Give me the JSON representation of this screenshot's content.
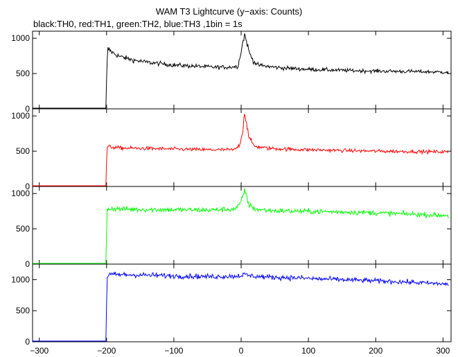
{
  "chart_data": {
    "type": "line",
    "title": "WAM T3 Lightcurve (y−axis: Counts)",
    "subtitle": "black:TH0, red:TH1, green:TH2, blue:TH3 ,1bin = 1s",
    "xlim": [
      -310,
      312
    ],
    "x_ticks": [
      -300,
      -200,
      -100,
      0,
      100,
      200,
      300
    ],
    "x_tick_labels": [
      "−300",
      "−200",
      "−100",
      "0",
      "100",
      "200",
      "300"
    ],
    "grid": false,
    "panels": [
      {
        "name": "TH0",
        "color": "#000000",
        "ylim": [
          0,
          1100
        ],
        "y_ticks": [
          0,
          500,
          1000
        ],
        "y_tick_labels": [
          "0",
          "500",
          "1000"
        ],
        "points": [
          [
            -310,
            0
          ],
          [
            -201,
            0
          ],
          [
            -200,
            400
          ],
          [
            -199,
            700
          ],
          [
            -198,
            850
          ],
          [
            -190,
            790
          ],
          [
            -180,
            740
          ],
          [
            -160,
            690
          ],
          [
            -140,
            660
          ],
          [
            -120,
            640
          ],
          [
            -100,
            620
          ],
          [
            -80,
            610
          ],
          [
            -60,
            600
          ],
          [
            -40,
            590
          ],
          [
            -20,
            590
          ],
          [
            -5,
            600
          ],
          [
            -2,
            720
          ],
          [
            2,
            920
          ],
          [
            5,
            1050
          ],
          [
            8,
            960
          ],
          [
            12,
            800
          ],
          [
            18,
            680
          ],
          [
            25,
            620
          ],
          [
            40,
            600
          ],
          [
            60,
            580
          ],
          [
            80,
            570
          ],
          [
            100,
            560
          ],
          [
            150,
            545
          ],
          [
            200,
            535
          ],
          [
            250,
            530
          ],
          [
            300,
            520
          ],
          [
            305,
            525
          ],
          [
            308,
            500
          ]
        ]
      },
      {
        "name": "TH1",
        "color": "#ff0000",
        "ylim": [
          0,
          1100
        ],
        "y_ticks": [
          0,
          500,
          1000
        ],
        "y_tick_labels": [
          "0",
          "500",
          "1000"
        ],
        "points": [
          [
            -310,
            0
          ],
          [
            -201,
            0
          ],
          [
            -200,
            350
          ],
          [
            -199,
            560
          ],
          [
            -195,
            560
          ],
          [
            -180,
            545
          ],
          [
            -150,
            540
          ],
          [
            -100,
            530
          ],
          [
            -50,
            520
          ],
          [
            -10,
            520
          ],
          [
            -3,
            580
          ],
          [
            2,
            750
          ],
          [
            5,
            1050
          ],
          [
            8,
            900
          ],
          [
            12,
            680
          ],
          [
            20,
            570
          ],
          [
            40,
            540
          ],
          [
            80,
            525
          ],
          [
            150,
            510
          ],
          [
            200,
            500
          ],
          [
            250,
            495
          ],
          [
            300,
            490
          ],
          [
            305,
            495
          ],
          [
            308,
            470
          ]
        ]
      },
      {
        "name": "TH2",
        "color": "#00ff00",
        "ylim": [
          0,
          1100
        ],
        "y_ticks": [
          0,
          500,
          1000
        ],
        "y_tick_labels": [
          "0",
          "500",
          "1000"
        ],
        "points": [
          [
            -310,
            0
          ],
          [
            -201,
            0
          ],
          [
            -200,
            450
          ],
          [
            -199,
            780
          ],
          [
            -195,
            790
          ],
          [
            -180,
            780
          ],
          [
            -150,
            775
          ],
          [
            -100,
            770
          ],
          [
            -50,
            765
          ],
          [
            -10,
            780
          ],
          [
            -3,
            830
          ],
          [
            2,
            930
          ],
          [
            5,
            1060
          ],
          [
            8,
            950
          ],
          [
            12,
            840
          ],
          [
            20,
            780
          ],
          [
            40,
            760
          ],
          [
            80,
            750
          ],
          [
            150,
            740
          ],
          [
            200,
            725
          ],
          [
            250,
            710
          ],
          [
            300,
            690
          ],
          [
            305,
            700
          ],
          [
            308,
            670
          ]
        ]
      },
      {
        "name": "TH3",
        "color": "#0000ff",
        "ylim": [
          0,
          1250
        ],
        "y_ticks": [
          0,
          500,
          1000
        ],
        "y_tick_labels": [
          "0",
          "500",
          "1000"
        ],
        "points": [
          [
            -310,
            0
          ],
          [
            -201,
            0
          ],
          [
            -200,
            600
          ],
          [
            -199,
            1050
          ],
          [
            -195,
            1080
          ],
          [
            -180,
            1080
          ],
          [
            -150,
            1075
          ],
          [
            -100,
            1060
          ],
          [
            -50,
            1050
          ],
          [
            -10,
            1055
          ],
          [
            0,
            1070
          ],
          [
            5,
            1080
          ],
          [
            15,
            1060
          ],
          [
            40,
            1040
          ],
          [
            80,
            1030
          ],
          [
            120,
            1010
          ],
          [
            150,
            1000
          ],
          [
            200,
            980
          ],
          [
            250,
            960
          ],
          [
            300,
            930
          ],
          [
            305,
            940
          ],
          [
            308,
            900
          ]
        ]
      }
    ]
  }
}
